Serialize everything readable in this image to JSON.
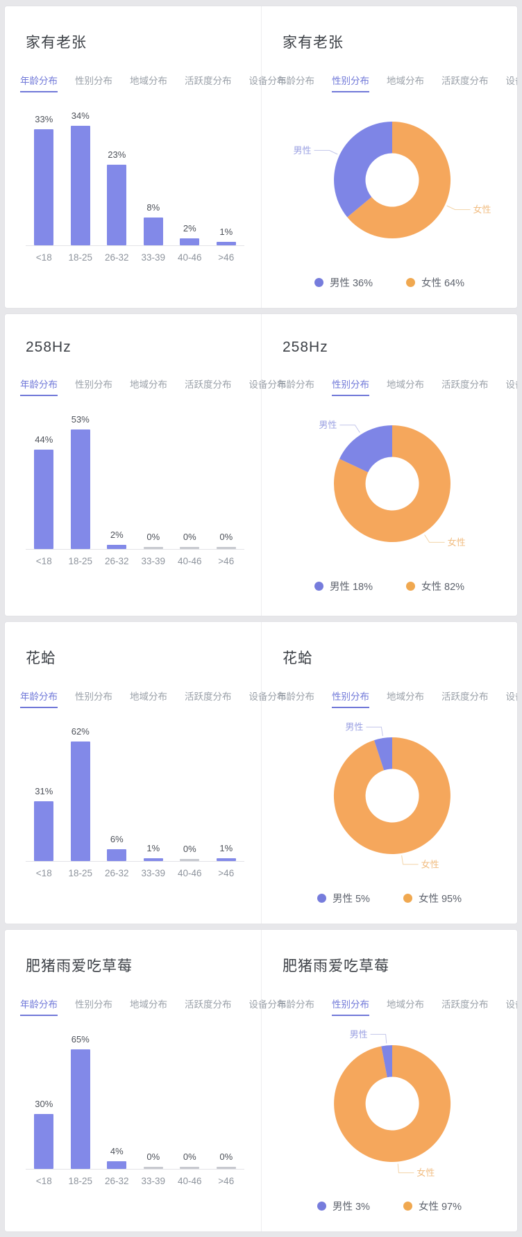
{
  "tabs": [
    "年龄分布",
    "性别分布",
    "地域分布",
    "活跃度分布",
    "设备分布"
  ],
  "age_categories": [
    "<18",
    "18-25",
    "26-32",
    "33-39",
    "40-46",
    ">46"
  ],
  "gender": {
    "male": "男性",
    "female": "女性"
  },
  "colors": {
    "bar": "#8289E8",
    "zero_bar": "#c7c9cf",
    "male": "#7E85E6",
    "female": "#F5A75C",
    "legend_male_dot": "#767CDC",
    "legend_female_dot": "#F0A850",
    "tab_active": "#7078d8",
    "tab_inactive": "#9aa0a8",
    "male_callout_line": "#c3c6ea",
    "female_callout_line": "#f3d4a8"
  },
  "accounts": [
    {
      "name": "家有老张",
      "age_values": [
        33,
        34,
        23,
        8,
        2,
        1
      ],
      "age_labels": [
        "33%",
        "34%",
        "23%",
        "8%",
        "2%",
        "1%"
      ],
      "male_pct": 36,
      "female_pct": 64,
      "male_legend": "男性 36%",
      "female_legend": "女性 64%"
    },
    {
      "name": "258Hz",
      "age_values": [
        44,
        53,
        2,
        0,
        0,
        0
      ],
      "age_labels": [
        "44%",
        "53%",
        "2%",
        "0%",
        "0%",
        "0%"
      ],
      "male_pct": 18,
      "female_pct": 82,
      "male_legend": "男性 18%",
      "female_legend": "女性 82%"
    },
    {
      "name": "花蛤",
      "age_values": [
        31,
        62,
        6,
        1,
        0,
        1
      ],
      "age_labels": [
        "31%",
        "62%",
        "6%",
        "1%",
        "0%",
        "1%"
      ],
      "male_pct": 5,
      "female_pct": 95,
      "male_legend": "男性 5%",
      "female_legend": "女性 95%"
    },
    {
      "name": "肥猪雨爱吃草莓",
      "age_values": [
        30,
        65,
        4,
        0,
        0,
        0
      ],
      "age_labels": [
        "30%",
        "65%",
        "4%",
        "0%",
        "0%",
        "0%"
      ],
      "male_pct": 3,
      "female_pct": 97,
      "male_legend": "男性 3%",
      "female_legend": "女性 97%"
    }
  ],
  "chart_data": [
    {
      "type": "bar",
      "title": "家有老张",
      "subtitle": "年龄分布",
      "categories": [
        "<18",
        "18-25",
        "26-32",
        "33-39",
        "40-46",
        ">46"
      ],
      "values": [
        33,
        34,
        23,
        8,
        2,
        1
      ],
      "value_unit": "%",
      "grid": false,
      "ylim": [
        0,
        40
      ]
    },
    {
      "type": "pie",
      "title": "家有老张",
      "subtitle": "性别分布",
      "labels": [
        "男性",
        "女性"
      ],
      "values": [
        36,
        64
      ],
      "value_unit": "%",
      "legend_position": "bottom",
      "donut": true
    },
    {
      "type": "bar",
      "title": "258Hz",
      "subtitle": "年龄分布",
      "categories": [
        "<18",
        "18-25",
        "26-32",
        "33-39",
        "40-46",
        ">46"
      ],
      "values": [
        44,
        53,
        2,
        0,
        0,
        0
      ],
      "value_unit": "%",
      "grid": false,
      "ylim": [
        0,
        60
      ]
    },
    {
      "type": "pie",
      "title": "258Hz",
      "subtitle": "性别分布",
      "labels": [
        "男性",
        "女性"
      ],
      "values": [
        18,
        82
      ],
      "value_unit": "%",
      "legend_position": "bottom",
      "donut": true
    },
    {
      "type": "bar",
      "title": "花蛤",
      "subtitle": "年龄分布",
      "categories": [
        "<18",
        "18-25",
        "26-32",
        "33-39",
        "40-46",
        ">46"
      ],
      "values": [
        31,
        62,
        6,
        1,
        0,
        1
      ],
      "value_unit": "%",
      "grid": false,
      "ylim": [
        0,
        70
      ]
    },
    {
      "type": "pie",
      "title": "花蛤",
      "subtitle": "性别分布",
      "labels": [
        "男性",
        "女性"
      ],
      "values": [
        5,
        95
      ],
      "value_unit": "%",
      "legend_position": "bottom",
      "donut": true
    },
    {
      "type": "bar",
      "title": "肥猪雨爱吃草莓",
      "subtitle": "年龄分布",
      "categories": [
        "<18",
        "18-25",
        "26-32",
        "33-39",
        "40-46",
        ">46"
      ],
      "values": [
        30,
        65,
        4,
        0,
        0,
        0
      ],
      "value_unit": "%",
      "grid": false,
      "ylim": [
        0,
        70
      ]
    },
    {
      "type": "pie",
      "title": "肥猪雨爱吃草莓",
      "subtitle": "性别分布",
      "labels": [
        "男性",
        "女性"
      ],
      "values": [
        3,
        97
      ],
      "value_unit": "%",
      "legend_position": "bottom",
      "donut": true
    }
  ]
}
